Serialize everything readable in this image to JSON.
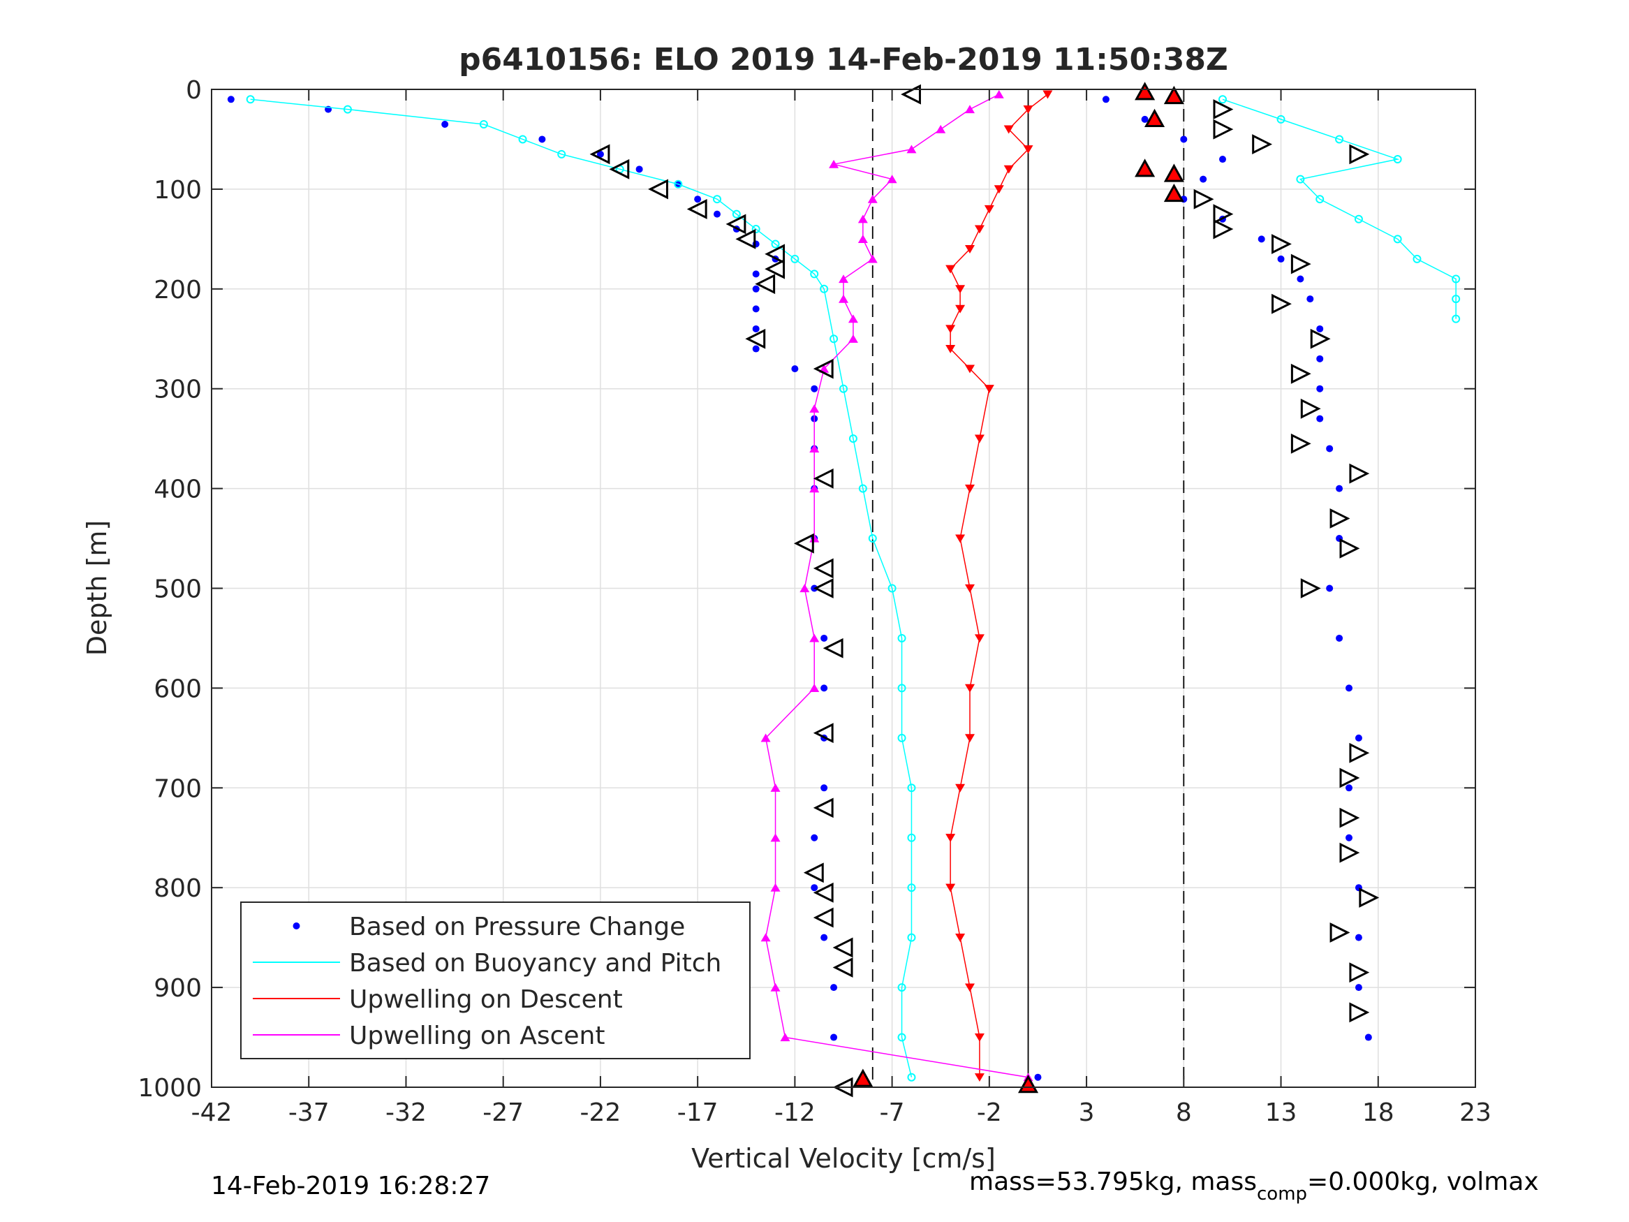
{
  "chart_data": {
    "type": "scatter",
    "title": "p6410156: ELO 2019 14-Feb-2019 11:50:38Z",
    "xlabel": "Vertical Velocity [cm/s]",
    "ylabel": "Depth [m]",
    "xlim": [
      -42,
      23
    ],
    "ylim": [
      0,
      1000
    ],
    "y_reversed": true,
    "grid": true,
    "xticks": [
      -42,
      -37,
      -32,
      -27,
      -22,
      -17,
      -12,
      -7,
      -2,
      3,
      8,
      13,
      18,
      23
    ],
    "yticks": [
      0,
      100,
      200,
      300,
      400,
      500,
      600,
      700,
      800,
      900,
      1000
    ],
    "xtick_labels": [
      "-42",
      "-37",
      "-32",
      "-27",
      "-22",
      "-17",
      "-12",
      "-7",
      "-2",
      "3",
      "8",
      "13",
      "18",
      "23"
    ],
    "ytick_labels": [
      "0",
      "100",
      "200",
      "300",
      "400",
      "500",
      "600",
      "700",
      "800",
      "900",
      "1000"
    ],
    "legend_position": "bottom-left",
    "reference_lines": [
      {
        "x": 0,
        "style": "solid"
      },
      {
        "x": -8,
        "style": "dashed"
      },
      {
        "x": 8,
        "style": "dashed"
      }
    ],
    "series": [
      {
        "name": "Based on Pressure Change",
        "color": "#0000ff",
        "marker": "dot",
        "profiles": [
          {
            "depth": [
              10,
              20,
              35,
              50,
              65,
              80,
              95,
              110,
              125,
              140,
              155,
              170,
              185,
              200,
              220,
              240,
              260,
              280,
              300,
              330,
              360,
              400,
              450,
              500,
              550,
              600,
              650,
              700,
              750,
              800,
              850,
              900,
              950,
              990
            ],
            "velocity": [
              -41,
              -36,
              -30,
              -25,
              -22,
              -20,
              -18,
              -17,
              -16,
              -15,
              -14,
              -13,
              -14,
              -14,
              -14,
              -14,
              -14,
              -12,
              -11,
              -11,
              -11,
              -11,
              -11,
              -11,
              -10.5,
              -10.5,
              -10.5,
              -10.5,
              -11,
              -11,
              -10.5,
              -10,
              -10,
              -8.5
            ]
          },
          {
            "depth": [
              10,
              30,
              50,
              70,
              90,
              110,
              130,
              150,
              170,
              190,
              210,
              240,
              270,
              300,
              330,
              360,
              400,
              450,
              500,
              550,
              600,
              650,
              700,
              750,
              800,
              850,
              900,
              950,
              990
            ],
            "velocity": [
              4,
              6,
              8,
              10,
              9,
              8,
              10,
              12,
              13,
              14,
              14.5,
              15,
              15,
              15,
              15,
              15.5,
              16,
              16,
              15.5,
              16,
              16.5,
              17,
              16.5,
              16.5,
              17,
              17,
              17,
              17.5,
              0.5
            ]
          }
        ]
      },
      {
        "name": "Based on Buoyancy and Pitch",
        "color": "#00ffff",
        "marker": "circle",
        "profiles": [
          {
            "depth": [
              10,
              20,
              35,
              50,
              65,
              80,
              95,
              110,
              125,
              140,
              155,
              170,
              185,
              200,
              250,
              300,
              350,
              400,
              450,
              500,
              550,
              600,
              650,
              700,
              750,
              800,
              850,
              900,
              950,
              990
            ],
            "velocity": [
              -40,
              -35,
              -28,
              -26,
              -24,
              -21,
              -18,
              -16,
              -15,
              -14,
              -13,
              -12,
              -11,
              -10.5,
              -10,
              -9.5,
              -9,
              -8.5,
              -8,
              -7,
              -6.5,
              -6.5,
              -6.5,
              -6,
              -6,
              -6,
              -6,
              -6.5,
              -6.5,
              -6
            ]
          },
          {
            "depth": [
              10,
              30,
              50,
              70,
              90,
              110,
              130,
              150,
              170,
              190,
              210,
              230
            ],
            "velocity": [
              10,
              13,
              16,
              19,
              14,
              15,
              17,
              19,
              20,
              22,
              22,
              22
            ]
          }
        ]
      },
      {
        "name": "Upwelling on Descent",
        "color": "#ff0000",
        "marker": "triangle-down",
        "profiles": [
          {
            "depth": [
              5,
              20,
              40,
              60,
              80,
              100,
              120,
              140,
              160,
              180,
              200,
              220,
              240,
              260,
              280,
              300,
              350,
              400,
              450,
              500,
              550,
              600,
              650,
              700,
              750,
              800,
              850,
              900,
              950,
              990
            ],
            "velocity": [
              1,
              0,
              -1,
              0,
              -1,
              -1.5,
              -2,
              -2.5,
              -3,
              -4,
              -3.5,
              -3.5,
              -4,
              -4,
              -3,
              -2,
              -2.5,
              -3,
              -3.5,
              -3,
              -2.5,
              -3,
              -3,
              -3.5,
              -4,
              -4,
              -3.5,
              -3,
              -2.5,
              -2.5
            ]
          }
        ]
      },
      {
        "name": "Upwelling on Ascent",
        "color": "#ff00ff",
        "marker": "triangle-up",
        "profiles": [
          {
            "depth": [
              5,
              20,
              40,
              60,
              75,
              90,
              110,
              130,
              150,
              170,
              190,
              210,
              230,
              250,
              280,
              320,
              360,
              400,
              450,
              500,
              550,
              600,
              650,
              700,
              750,
              800,
              850,
              900,
              950,
              990
            ],
            "velocity": [
              -1.5,
              -3,
              -4.5,
              -6,
              -10,
              -7,
              -8,
              -8.5,
              -8.5,
              -8,
              -9.5,
              -9.5,
              -9,
              -9,
              -10.5,
              -11,
              -11,
              -11,
              -11,
              -11.5,
              -11,
              -11,
              -13.5,
              -13,
              -13,
              -13,
              -13.5,
              -13,
              -12.5,
              0
            ]
          }
        ]
      }
    ],
    "markers": {
      "left_triangles_open": [
        [
          -22,
          65
        ],
        [
          -21,
          80
        ],
        [
          -19,
          100
        ],
        [
          -17,
          120
        ],
        [
          -15,
          135
        ],
        [
          -14.5,
          150
        ],
        [
          -13,
          165
        ],
        [
          -13,
          180
        ],
        [
          -13.5,
          195
        ],
        [
          -14,
          250
        ],
        [
          -10.5,
          280
        ],
        [
          -10.5,
          390
        ],
        [
          -11.5,
          455
        ],
        [
          -10.5,
          480
        ],
        [
          -10.5,
          500
        ],
        [
          -10,
          560
        ],
        [
          -10.5,
          645
        ],
        [
          -10.5,
          720
        ],
        [
          -11,
          785
        ],
        [
          -10.5,
          805
        ],
        [
          -10.5,
          830
        ],
        [
          -9.5,
          860
        ],
        [
          -9.5,
          880
        ],
        [
          -9.5,
          1000
        ],
        [
          -6,
          5
        ],
        [
          10,
          20
        ],
        [
          10,
          40
        ],
        [
          12,
          55
        ],
        [
          17,
          65
        ],
        [
          9,
          110
        ],
        [
          10,
          125
        ],
        [
          10,
          140
        ],
        [
          13,
          155
        ],
        [
          14,
          175
        ],
        [
          13,
          215
        ],
        [
          15,
          250
        ],
        [
          14,
          285
        ],
        [
          14.5,
          320
        ],
        [
          14,
          355
        ],
        [
          17,
          385
        ],
        [
          16,
          430
        ],
        [
          16.5,
          460
        ],
        [
          14.5,
          500
        ],
        [
          17,
          665
        ],
        [
          16.5,
          690
        ],
        [
          16.5,
          730
        ],
        [
          16.5,
          765
        ],
        [
          17.5,
          810
        ],
        [
          16,
          845
        ],
        [
          17,
          885
        ],
        [
          17,
          925
        ]
      ],
      "red_triangles": [
        [
          6,
          3
        ],
        [
          7.5,
          7
        ],
        [
          6.5,
          30
        ],
        [
          6,
          80
        ],
        [
          7.5,
          85
        ],
        [
          7.5,
          105
        ],
        [
          -8.5,
          992
        ],
        [
          0,
          998
        ]
      ]
    }
  },
  "footer": {
    "left": "14-Feb-2019 16:28:27",
    "right_prefix": "mass=53.795kg, mass",
    "right_sub": "comp",
    "right_suffix": "=0.000kg, volmax"
  }
}
